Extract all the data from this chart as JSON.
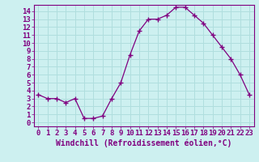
{
  "x": [
    0,
    1,
    2,
    3,
    4,
    5,
    6,
    7,
    8,
    9,
    10,
    11,
    12,
    13,
    14,
    15,
    16,
    17,
    18,
    19,
    20,
    21,
    22,
    23
  ],
  "y": [
    3.5,
    3.0,
    3.0,
    2.5,
    3.0,
    0.5,
    0.5,
    0.8,
    3.0,
    5.0,
    8.5,
    11.5,
    13.0,
    13.0,
    13.5,
    14.5,
    14.5,
    13.5,
    12.5,
    11.0,
    9.5,
    8.0,
    6.0,
    3.5
  ],
  "line_color": "#800080",
  "marker": "+",
  "marker_size": 4,
  "xlabel": "Windchill (Refroidissement éolien,°C)",
  "ytick_labels": [
    "0",
    "1",
    "2",
    "3",
    "4",
    "5",
    "6",
    "7",
    "8",
    "9",
    "10",
    "11",
    "12",
    "13",
    "14"
  ],
  "ytick_values": [
    0,
    1,
    2,
    3,
    4,
    5,
    6,
    7,
    8,
    9,
    10,
    11,
    12,
    13,
    14
  ],
  "xlim": [
    -0.5,
    23.5
  ],
  "ylim": [
    -0.5,
    14.8
  ],
  "background_color": "#cdf0f0",
  "grid_color": "#b0dede",
  "tick_color": "#800080",
  "label_color": "#800080",
  "xlabel_fontsize": 7,
  "tick_fontsize": 6.5
}
